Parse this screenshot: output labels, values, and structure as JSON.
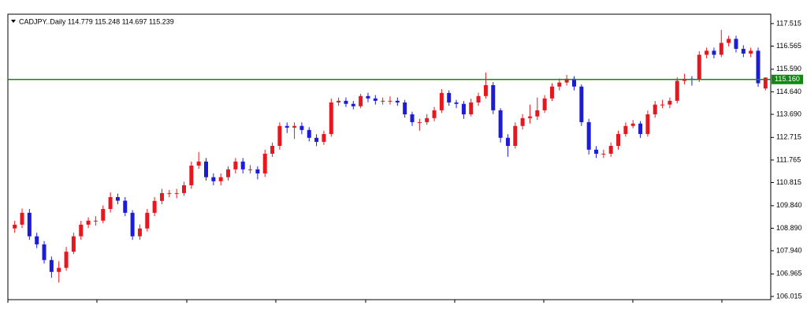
{
  "chart_data": {
    "type": "candlestick",
    "title": "CADJPY..Daily 114.779 115.248 114.697 115.239",
    "up_color": "#e8171f",
    "down_color": "#1c1cd6",
    "line_color": "#108a10",
    "ylim": [
      105.88,
      117.91
    ],
    "yticks": [
      106.015,
      106.965,
      {
        "value": 107.94,
        "label": "107.940"
      },
      {
        "value": 108.89,
        "label": "108.890"
      },
      {
        "value": 109.84,
        "label": "109.840"
      },
      110.815,
      111.765,
      112.715,
      {
        "value": 113.69,
        "label": "113.690"
      },
      {
        "value": 114.64,
        "label": "114.640"
      },
      {
        "value": 115.59,
        "label": "115.590"
      },
      116.565,
      117.515
    ],
    "price_line": {
      "value": 115.16,
      "label": "115.160"
    },
    "open": [
      108.88,
      109.04,
      109.54,
      108.55,
      108.21,
      107.55,
      107.05,
      107.22,
      107.9,
      108.55,
      109.04,
      109.21,
      109.21,
      109.7,
      110.2,
      110.05,
      109.54,
      108.55,
      108.88,
      109.54,
      110.04,
      110.37,
      110.37,
      110.37,
      110.7,
      111.53,
      111.7,
      111.04,
      110.87,
      111.04,
      111.37,
      111.7,
      111.37,
      111.37,
      111.2,
      112.03,
      112.36,
      113.2,
      113.13,
      113.2,
      113.03,
      112.7,
      112.53,
      112.86,
      114.19,
      114.26,
      114.13,
      114.03,
      114.46,
      114.36,
      114.26,
      114.26,
      114.26,
      114.19,
      113.69,
      113.36,
      113.36,
      113.53,
      113.86,
      114.59,
      114.19,
      114.13,
      113.69,
      114.19,
      114.46,
      114.92,
      113.86,
      112.7,
      112.36,
      113.2,
      113.53,
      113.6,
      113.86,
      114.36,
      114.86,
      115.03,
      115.19,
      114.86,
      113.36,
      112.2,
      112.03,
      112.03,
      112.36,
      112.86,
      113.2,
      113.3,
      112.86,
      113.69,
      114.1,
      114.1,
      114.26,
      115.1,
      115.19,
      115.16,
      116.2,
      116.37,
      116.2,
      116.7,
      116.87,
      116.45,
      116.25,
      116.37,
      114.779
    ],
    "high": [
      109.2,
      109.72,
      109.7,
      108.7,
      108.35,
      107.7,
      107.5,
      108.1,
      108.7,
      109.2,
      109.35,
      109.4,
      109.85,
      110.4,
      110.35,
      110.2,
      109.65,
      109.05,
      109.7,
      110.2,
      110.55,
      110.5,
      110.55,
      110.85,
      111.7,
      112.1,
      111.85,
      111.2,
      111.2,
      111.5,
      111.85,
      111.85,
      111.55,
      111.5,
      112.2,
      112.5,
      113.35,
      113.35,
      113.35,
      113.35,
      113.15,
      112.85,
      113.0,
      114.35,
      114.4,
      114.4,
      114.25,
      114.55,
      114.6,
      114.5,
      114.4,
      114.45,
      114.4,
      114.3,
      113.8,
      113.5,
      113.7,
      114.0,
      114.75,
      114.7,
      114.3,
      114.25,
      114.35,
      114.6,
      115.45,
      115.05,
      113.95,
      112.85,
      113.35,
      113.7,
      114.1,
      114.4,
      114.5,
      115.0,
      115.2,
      115.35,
      115.3,
      114.95,
      113.5,
      112.35,
      112.2,
      112.5,
      113.0,
      113.35,
      113.45,
      113.4,
      113.85,
      114.25,
      114.3,
      114.4,
      115.25,
      115.4,
      115.3,
      116.35,
      116.5,
      116.5,
      117.25,
      117.0,
      117.0,
      116.6,
      116.5,
      116.5,
      115.248
    ],
    "low": [
      108.7,
      108.9,
      108.4,
      108.05,
      107.4,
      106.8,
      106.6,
      107.1,
      107.8,
      108.4,
      108.9,
      109.0,
      109.1,
      109.55,
      109.9,
      109.4,
      108.4,
      108.4,
      108.75,
      109.4,
      109.9,
      110.2,
      110.15,
      110.25,
      110.55,
      111.4,
      110.9,
      110.7,
      110.7,
      110.9,
      111.2,
      111.2,
      111.2,
      110.95,
      111.05,
      111.9,
      112.2,
      112.9,
      112.65,
      112.85,
      112.55,
      112.35,
      112.4,
      112.75,
      114.05,
      114.0,
      113.9,
      113.95,
      114.2,
      114.1,
      114.1,
      114.1,
      114.05,
      113.55,
      113.2,
      113.0,
      113.25,
      113.4,
      113.75,
      114.05,
      113.95,
      113.5,
      113.6,
      114.05,
      114.35,
      113.7,
      112.5,
      111.9,
      112.25,
      113.05,
      113.3,
      113.45,
      113.75,
      114.25,
      114.7,
      114.9,
      114.7,
      113.2,
      112.0,
      111.85,
      111.85,
      111.9,
      112.2,
      112.75,
      113.1,
      112.7,
      112.75,
      113.55,
      113.95,
      113.95,
      114.15,
      114.95,
      114.9,
      115.05,
      116.05,
      116.05,
      116.1,
      116.55,
      116.3,
      116.1,
      116.1,
      114.85,
      114.697
    ],
    "close": [
      109.04,
      109.54,
      108.55,
      108.21,
      107.55,
      107.05,
      107.22,
      107.9,
      108.55,
      109.04,
      109.21,
      109.21,
      109.7,
      110.2,
      110.05,
      109.54,
      108.55,
      108.88,
      109.54,
      110.04,
      110.37,
      110.37,
      110.37,
      110.7,
      111.53,
      111.7,
      111.04,
      110.87,
      111.04,
      111.37,
      111.7,
      111.37,
      111.37,
      111.2,
      112.03,
      112.36,
      113.2,
      113.13,
      113.2,
      113.03,
      112.7,
      112.53,
      112.86,
      114.19,
      114.26,
      114.13,
      114.03,
      114.46,
      114.36,
      114.26,
      114.26,
      114.26,
      114.19,
      113.69,
      113.36,
      113.36,
      113.53,
      113.86,
      114.59,
      114.19,
      114.13,
      113.69,
      114.19,
      114.46,
      114.92,
      113.86,
      112.7,
      112.36,
      113.2,
      113.53,
      113.6,
      113.86,
      114.36,
      114.86,
      115.03,
      115.19,
      114.86,
      113.36,
      112.2,
      112.03,
      112.03,
      112.36,
      112.86,
      113.2,
      113.3,
      112.86,
      113.69,
      114.1,
      114.1,
      114.26,
      115.1,
      115.19,
      115.16,
      116.2,
      116.37,
      116.2,
      116.7,
      116.87,
      116.45,
      116.25,
      116.37,
      115.0,
      115.239
    ]
  }
}
